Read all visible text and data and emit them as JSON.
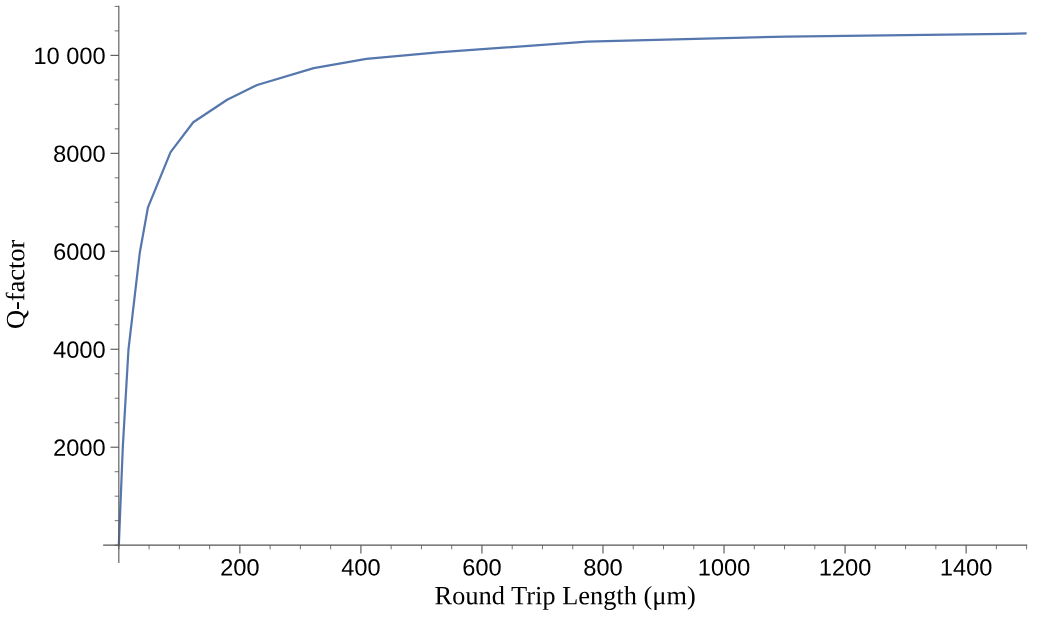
{
  "chart_data": {
    "type": "line",
    "xlabel": "Round Trip Length (μm)",
    "ylabel": "Q-factor",
    "x": [
      0,
      6.6,
      15.9,
      34.6,
      48,
      85.5,
      123,
      179,
      228.6,
      322,
      409,
      527,
      774,
      1103,
      1465,
      1500
    ],
    "series": [
      {
        "color": "#5677ad",
        "values": [
          0,
          2010,
          3990,
          5970,
          6890,
          8025,
          8634,
          9093,
          9396,
          9740,
          9930,
          10060,
          10280,
          10384,
          10440,
          10450
        ]
      }
    ],
    "xlim": [
      -25,
      1500
    ],
    "ylim": [
      -350,
      11000
    ],
    "xticks": [
      200,
      400,
      600,
      800,
      1000,
      1200,
      1400
    ],
    "yticks": [
      2000,
      4000,
      6000,
      8000,
      {
        "value": 10000,
        "label": "10 000"
      }
    ],
    "grid": false,
    "legend": false,
    "marker": "none",
    "line_style": "solid"
  }
}
